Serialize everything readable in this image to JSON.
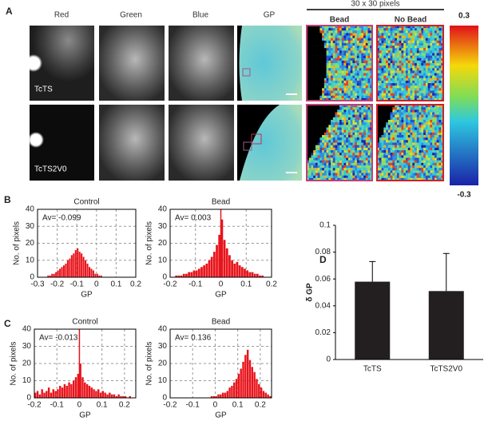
{
  "panel_a": {
    "letter": "A",
    "columns": [
      "Red",
      "Green",
      "Blue",
      "GP"
    ],
    "zoom_title": "30 x 30 pixels",
    "zoom_columns": [
      "Bead",
      "No Bead"
    ],
    "rows": [
      "TcTS",
      "TcTS2V0"
    ],
    "colorbar": {
      "max": 0.3,
      "min": -0.3
    }
  },
  "panel_labels": [
    "B",
    "C",
    "D"
  ],
  "chart_data": [
    {
      "type": "histogram",
      "title": "Control",
      "annotation": "Av= -0.099",
      "xlabel": "GP",
      "ylabel": "No. of pixels",
      "color": "#e8141c",
      "bins": [
        -0.3,
        -0.29,
        -0.28,
        -0.27,
        -0.26,
        -0.25,
        -0.24,
        -0.23,
        -0.22,
        -0.21,
        -0.2,
        -0.19,
        -0.18,
        -0.17,
        -0.16,
        -0.15,
        -0.14,
        -0.13,
        -0.12,
        -0.11,
        -0.1,
        -0.09,
        -0.08,
        -0.07,
        -0.06,
        -0.05,
        -0.04,
        -0.03,
        -0.02,
        -0.01,
        0,
        0.01,
        0.02,
        0.03,
        0.04,
        0.05,
        0.06,
        0.07,
        0.08,
        0.09,
        0.1,
        0.11,
        0.12,
        0.13,
        0.14,
        0.15,
        0.16,
        0.17,
        0.18,
        0.19,
        0.2
      ],
      "counts": [
        0,
        0,
        0,
        0,
        0,
        1,
        1,
        2,
        2,
        3,
        4,
        5,
        6,
        7,
        8,
        10,
        11,
        13,
        14,
        16,
        17,
        15,
        14,
        12,
        10,
        8,
        6,
        5,
        4,
        2,
        2,
        1,
        1,
        0,
        0,
        0,
        0,
        0,
        0,
        0,
        0,
        0,
        0,
        0,
        0,
        0,
        0,
        0,
        0,
        0
      ],
      "xlim": [
        -0.3,
        0.2
      ],
      "ylim": [
        0,
        40
      ],
      "xticks": [
        -0.3,
        -0.2,
        -0.1,
        0,
        0.1,
        0.2
      ],
      "yticks": [
        0,
        10,
        20,
        30,
        40
      ],
      "grid": true
    },
    {
      "type": "histogram",
      "title": "Bead",
      "annotation": "Av= 0.003",
      "xlabel": "GP",
      "ylabel": "No. of pixels",
      "color": "#e8141c",
      "marker_line": 0,
      "bins": [
        -0.2,
        -0.19,
        -0.18,
        -0.17,
        -0.16,
        -0.15,
        -0.14,
        -0.13,
        -0.12,
        -0.11,
        -0.1,
        -0.09,
        -0.08,
        -0.07,
        -0.06,
        -0.05,
        -0.04,
        -0.03,
        -0.02,
        -0.01,
        0,
        0.01,
        0.02,
        0.03,
        0.04,
        0.05,
        0.06,
        0.07,
        0.08,
        0.09,
        0.1,
        0.11,
        0.12,
        0.13,
        0.14,
        0.15,
        0.16,
        0.17,
        0.18,
        0.19,
        0.2
      ],
      "counts": [
        0,
        0,
        1,
        1,
        1,
        2,
        2,
        3,
        3,
        4,
        4,
        5,
        6,
        7,
        8,
        10,
        12,
        15,
        19,
        25,
        34,
        22,
        17,
        13,
        10,
        8,
        9,
        7,
        6,
        5,
        4,
        3,
        3,
        2,
        2,
        1,
        1,
        0,
        0,
        0
      ],
      "xlim": [
        -0.2,
        0.2
      ],
      "ylim": [
        0,
        40
      ],
      "xticks": [
        -0.2,
        -0.1,
        0,
        0.1,
        0.2
      ],
      "yticks": [
        0,
        10,
        20,
        30,
        40
      ],
      "grid": true
    },
    {
      "type": "histogram",
      "title": "Control",
      "annotation": "Av= -0.013",
      "xlabel": "GP",
      "ylabel": "No. of pixels",
      "color": "#e8141c",
      "marker_line": 0,
      "bins": [
        -0.2,
        -0.19,
        -0.18,
        -0.17,
        -0.16,
        -0.15,
        -0.14,
        -0.13,
        -0.12,
        -0.11,
        -0.1,
        -0.09,
        -0.08,
        -0.07,
        -0.06,
        -0.05,
        -0.04,
        -0.03,
        -0.02,
        -0.01,
        0,
        0.01,
        0.02,
        0.03,
        0.04,
        0.05,
        0.06,
        0.07,
        0.08,
        0.09,
        0.1,
        0.11,
        0.12,
        0.13,
        0.14,
        0.15,
        0.16,
        0.17,
        0.18,
        0.19,
        0.2,
        0.21,
        0.22,
        0.23,
        0.24,
        0.25
      ],
      "counts": [
        3,
        4,
        2,
        5,
        3,
        4,
        6,
        3,
        5,
        4,
        5,
        7,
        6,
        8,
        7,
        9,
        8,
        10,
        12,
        14,
        20,
        12,
        9,
        8,
        7,
        6,
        5,
        4,
        5,
        3,
        4,
        3,
        2,
        3,
        2,
        2,
        1,
        2,
        1,
        1,
        1,
        0,
        1,
        0,
        0
      ],
      "xlim": [
        -0.2,
        0.25
      ],
      "ylim": [
        0,
        40
      ],
      "xticks": [
        -0.2,
        -0.1,
        0,
        0.1,
        0.2
      ],
      "yticks": [
        0,
        10,
        20,
        30,
        40
      ],
      "grid": true
    },
    {
      "type": "histogram",
      "title": "Bead",
      "annotation": "Av= 0.136",
      "xlabel": "GP",
      "ylabel": "No. of pixels",
      "color": "#e8141c",
      "bins": [
        -0.2,
        -0.19,
        -0.18,
        -0.17,
        -0.16,
        -0.15,
        -0.14,
        -0.13,
        -0.12,
        -0.11,
        -0.1,
        -0.09,
        -0.08,
        -0.07,
        -0.06,
        -0.05,
        -0.04,
        -0.03,
        -0.02,
        -0.01,
        0,
        0.01,
        0.02,
        0.03,
        0.04,
        0.05,
        0.06,
        0.07,
        0.08,
        0.09,
        0.1,
        0.11,
        0.12,
        0.13,
        0.14,
        0.15,
        0.16,
        0.17,
        0.18,
        0.19,
        0.2,
        0.21,
        0.22,
        0.23,
        0.24,
        0.25
      ],
      "counts": [
        0,
        0,
        0,
        0,
        0,
        0,
        0,
        0,
        0,
        0,
        0,
        0,
        0,
        0,
        0,
        0,
        0,
        0,
        1,
        1,
        1,
        2,
        2,
        3,
        3,
        4,
        6,
        7,
        9,
        11,
        14,
        17,
        21,
        25,
        28,
        22,
        18,
        15,
        11,
        8,
        6,
        4,
        3,
        2,
        1
      ],
      "xlim": [
        -0.2,
        0.25
      ],
      "ylim": [
        0,
        40
      ],
      "xticks": [
        -0.2,
        -0.1,
        0,
        0.1,
        0.2
      ],
      "yticks": [
        0,
        10,
        20,
        30,
        40
      ],
      "grid": true
    },
    {
      "type": "bar",
      "ylabel": "δ GP",
      "categories": [
        "TcTS",
        "TcTS2V0"
      ],
      "values": [
        0.058,
        0.051
      ],
      "errors": [
        0.015,
        0.028
      ],
      "color": "#231f20",
      "ylim": [
        0,
        0.1
      ],
      "yticks": [
        0,
        0.02,
        0.04,
        0.06,
        0.08,
        0.1
      ]
    }
  ]
}
